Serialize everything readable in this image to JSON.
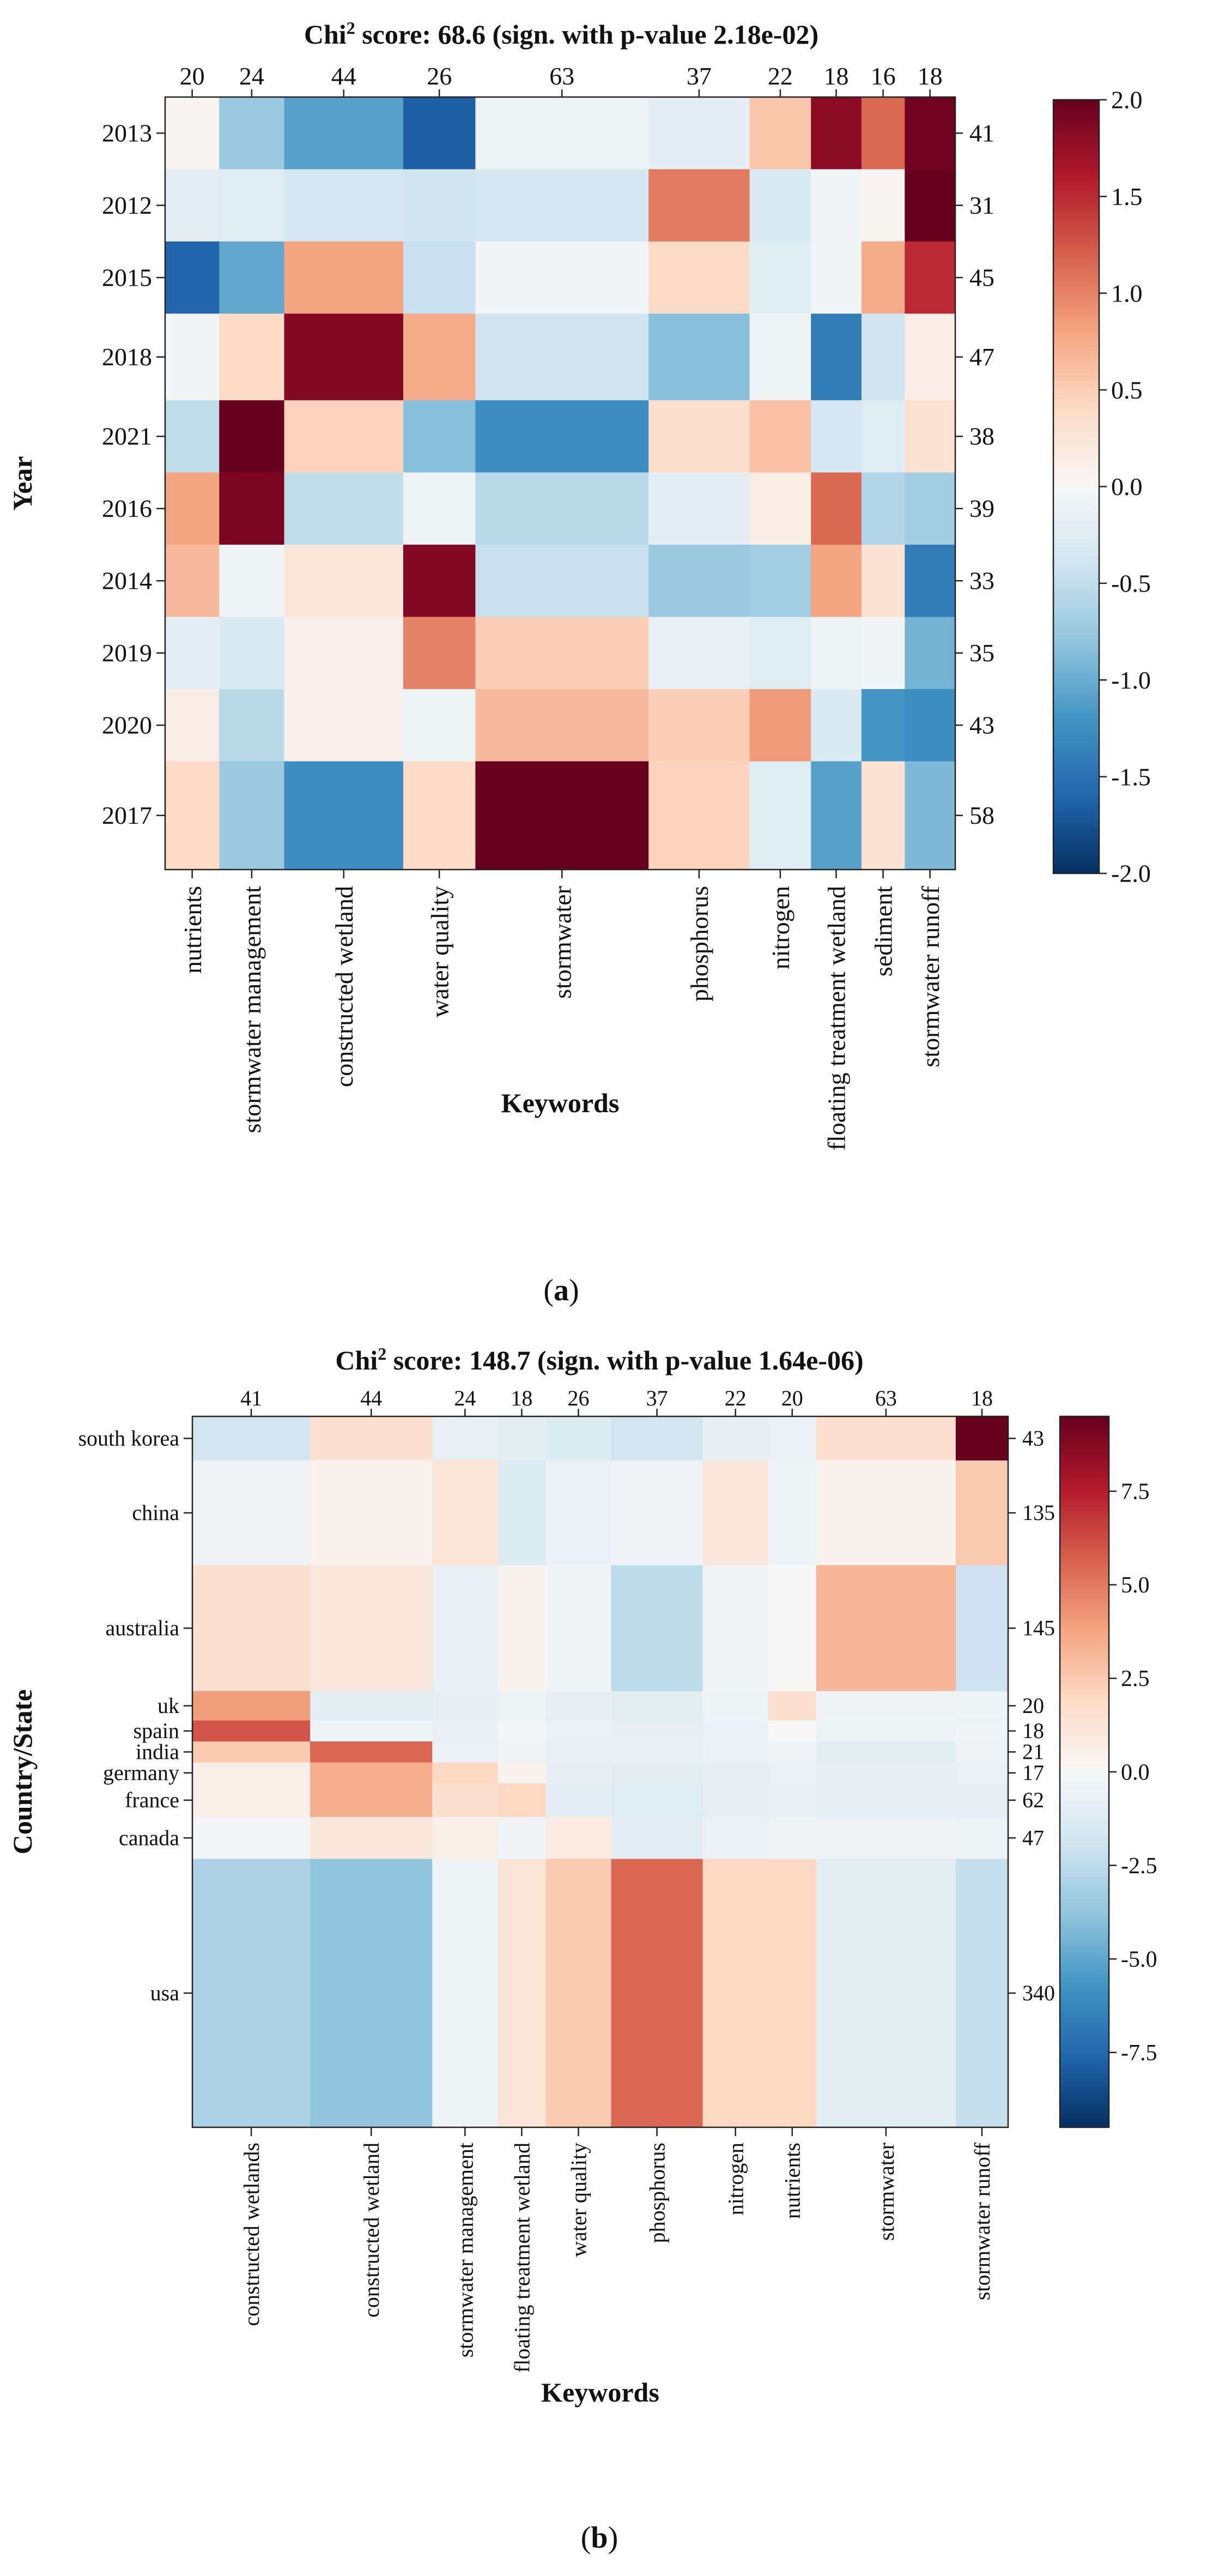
{
  "chart_data": [
    {
      "type": "heatmap",
      "panel_label": "a",
      "title_prefix": "Chi",
      "title_sup": "2",
      "title_rest": " score: 68.6 (sign. with p-value 2.18e-02)",
      "xlabel": "Keywords",
      "ylabel": "Year",
      "x_categories": [
        "nutrients",
        "stormwater management",
        "constructed wetland",
        "water quality",
        "stormwater",
        "phosphorus",
        "nitrogen",
        "floating treatment wetland",
        "sediment",
        "stormwater runoff"
      ],
      "x_totals": [
        "20",
        "24",
        "44",
        "26",
        "63",
        "37",
        "22",
        "18",
        "16",
        "18"
      ],
      "y_categories": [
        "2013",
        "2012",
        "2015",
        "2018",
        "2021",
        "2016",
        "2014",
        "2019",
        "2020",
        "2017"
      ],
      "y_totals": [
        "41",
        "31",
        "45",
        "47",
        "38",
        "39",
        "33",
        "35",
        "43",
        "58"
      ],
      "colorbar": {
        "min": -2.0,
        "max": 2.0,
        "ticks": [
          "2.0",
          "1.5",
          "1.0",
          "0.5",
          "0.0",
          "-0.5",
          "-1.0",
          "-1.5",
          "-2.0"
        ]
      },
      "values": [
        [
          0.05,
          -0.75,
          -1.1,
          -1.65,
          -0.1,
          -0.2,
          0.55,
          1.8,
          1.15,
          1.95
        ],
        [
          -0.2,
          -0.25,
          -0.35,
          -0.4,
          -0.35,
          1.05,
          -0.3,
          -0.05,
          0.05,
          2.0
        ],
        [
          -1.6,
          -1.05,
          0.8,
          -0.45,
          -0.05,
          0.4,
          -0.25,
          -0.05,
          0.75,
          1.5
        ],
        [
          -0.05,
          0.4,
          1.85,
          0.75,
          -0.4,
          -0.85,
          -0.1,
          -1.4,
          -0.4,
          0.15
        ],
        [
          -0.5,
          2.1,
          0.45,
          -0.85,
          -1.25,
          0.35,
          0.6,
          -0.35,
          -0.25,
          0.3
        ],
        [
          0.8,
          1.9,
          -0.5,
          -0.1,
          -0.55,
          -0.2,
          0.15,
          1.15,
          -0.6,
          -0.7
        ],
        [
          0.65,
          -0.1,
          0.25,
          1.85,
          -0.45,
          -0.75,
          -0.7,
          0.8,
          0.3,
          -1.4
        ],
        [
          -0.2,
          -0.3,
          0.1,
          1.0,
          0.5,
          -0.15,
          -0.25,
          -0.1,
          -0.05,
          -0.95
        ],
        [
          0.15,
          -0.55,
          0.1,
          -0.1,
          0.65,
          0.5,
          0.85,
          -0.3,
          -1.2,
          -1.25
        ],
        [
          0.4,
          -0.75,
          -1.25,
          0.4,
          2.2,
          0.45,
          -0.25,
          -1.1,
          0.3,
          -0.9
        ]
      ]
    },
    {
      "type": "heatmap",
      "panel_label": "b",
      "title_prefix": "Chi",
      "title_sup": "2",
      "title_rest": " score: 148.7 (sign. with p-value 1.64e-06)",
      "xlabel": "Keywords",
      "ylabel": "Country/State",
      "x_categories": [
        "constructed wetlands",
        "constructed wetland",
        "stormwater management",
        "floating treatment wetland",
        "water quality",
        "phosphorus",
        "nitrogen",
        "nutrients",
        "stormwater",
        "stormwater runoff"
      ],
      "x_totals": [
        "41",
        "44",
        "24",
        "18",
        "26",
        "37",
        "22",
        "20",
        "63",
        "18"
      ],
      "y_categories": [
        "south korea",
        "china",
        "australia",
        "uk",
        "spain",
        "india",
        "germany",
        "france",
        "canada",
        "usa"
      ],
      "y_totals": [
        "43",
        "135",
        "145",
        "20",
        "18",
        "21",
        "17",
        "62",
        "47",
        "340"
      ],
      "colorbar": {
        "min": -9.5,
        "max": 9.5,
        "ticks": [
          "7.5",
          "5.0",
          "2.5",
          "0.0",
          "-2.5",
          "-5.0",
          "-7.5"
        ]
      },
      "values": [
        [
          -1.8,
          1.5,
          -0.7,
          -1.0,
          -1.3,
          -1.8,
          -0.8,
          -0.6,
          1.5,
          9.5
        ],
        [
          -0.4,
          0.4,
          1.2,
          -1.3,
          -0.6,
          -0.4,
          1.0,
          -0.5,
          0.3,
          2.5
        ],
        [
          1.5,
          1.0,
          -0.7,
          0.3,
          -0.3,
          -2.5,
          -0.3,
          0.0,
          3.2,
          -2.0
        ],
        [
          4.0,
          -1.0,
          -0.8,
          -0.5,
          -0.8,
          -1.0,
          -0.5,
          1.5,
          -0.4,
          -0.5
        ],
        [
          6.0,
          -0.5,
          -0.7,
          -0.2,
          -0.6,
          -0.8,
          -0.6,
          0.0,
          -0.5,
          -0.3
        ],
        [
          2.5,
          5.5,
          -0.6,
          -0.4,
          -0.7,
          -0.7,
          -0.6,
          -0.4,
          -1.0,
          -0.4
        ],
        [
          0.6,
          3.5,
          2.0,
          0.3,
          -0.8,
          -1.0,
          -0.8,
          -0.6,
          -0.8,
          -0.6
        ],
        [
          0.6,
          3.5,
          1.5,
          2.0,
          -0.9,
          -1.2,
          -0.8,
          -0.7,
          -0.8,
          -0.8
        ],
        [
          -0.2,
          1.0,
          0.6,
          -0.3,
          0.8,
          -0.9,
          -0.6,
          -0.4,
          -0.4,
          -0.5
        ],
        [
          -3.0,
          -3.8,
          -0.5,
          1.2,
          2.5,
          5.5,
          2.0,
          2.0,
          -1.0,
          -2.2
        ]
      ]
    }
  ]
}
